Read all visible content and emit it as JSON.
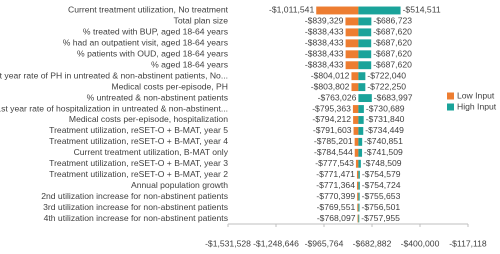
{
  "chart_data": {
    "type": "tornado",
    "categories": [
      "Current treatment utilization, No treatment",
      "Total plan size",
      "% treated with BUP, aged 18-64 years",
      "% had an outpatient visit, aged 18-64 years",
      "% patients with OUD, aged 18-64 years",
      "% aged 18-64 years",
      "1st year rate of PH in untreated & non-abstinent patients, No...",
      "Medical costs per-episode, PH",
      "% untreated & non-abstinent patients",
      "1st year rate of hospitalization in untreated & non-abstinent...",
      "Medical costs per-episode, hospitalization",
      "Treatment utilization, reSET-O + B-MAT, year 5",
      "Treatment utilization, reSET-O + B-MAT, year 4",
      "Current treatment utilization, B-MAT only",
      "Treatment utilization, reSET-O + B-MAT, year 3",
      "Treatment utilization, reSET-O + B-MAT, year 2",
      "Annual population growth",
      "2nd utilization increase for non-abstinent patients",
      "3rd utilization increase for non-abstinent patients",
      "4th utilization increase for non-abstinent patients"
    ],
    "series": [
      {
        "name": "Low Input",
        "color": "#ed7d31",
        "values": [
          -1011541,
          -839329,
          -838433,
          -838433,
          -838433,
          -838433,
          -804012,
          -803802,
          -763026,
          -795363,
          -794212,
          -791603,
          -785201,
          -784544,
          -777543,
          -771471,
          -771364,
          -770399,
          -769551,
          -768097
        ],
        "value_labels": [
          "-$1,011,541",
          "-$839,329",
          "-$838,433",
          "-$838,433",
          "-$838,433",
          "-$838,433",
          "-$804,012",
          "-$803,802",
          "-$763,026",
          "-$795,363",
          "-$794,212",
          "-$791,603",
          "-$785,201",
          "-$784,544",
          "-$777,543",
          "-$771,471",
          "-$771,364",
          "-$770,399",
          "-$769,551",
          "-$768,097"
        ]
      },
      {
        "name": "High Input",
        "color": "#1aa39a",
        "values": [
          -514511,
          -686723,
          -687620,
          -687620,
          -687620,
          -687620,
          -722040,
          -722250,
          -683997,
          -730689,
          -731840,
          -734449,
          -740851,
          -741509,
          -748509,
          -754579,
          -754724,
          -755653,
          -756501,
          -757955
        ],
        "value_labels": [
          "-$514,511",
          "-$686,723",
          "-$687,620",
          "-$687,620",
          "-$687,620",
          "-$687,620",
          "-$722,040",
          "-$722,250",
          "-$683,997",
          "-$730,689",
          "-$731,840",
          "-$734,449",
          "-$740,851",
          "-$741,509",
          "-$748,509",
          "-$754,579",
          "-$754,724",
          "-$755,653",
          "-$756,501",
          "-$757,955"
        ]
      }
    ],
    "xlim": [
      -1531528,
      -117118
    ],
    "xticks": [
      {
        "value": -1531528,
        "label": "-$1,531,528"
      },
      {
        "value": -1248646,
        "label": "-$1,248,646"
      },
      {
        "value": -965764,
        "label": "-$965,764"
      },
      {
        "value": -682882,
        "label": "-$682,882"
      },
      {
        "value": -400000,
        "label": "-$400,000"
      },
      {
        "value": -117118,
        "label": "-$117,118"
      }
    ],
    "legend": "right"
  }
}
